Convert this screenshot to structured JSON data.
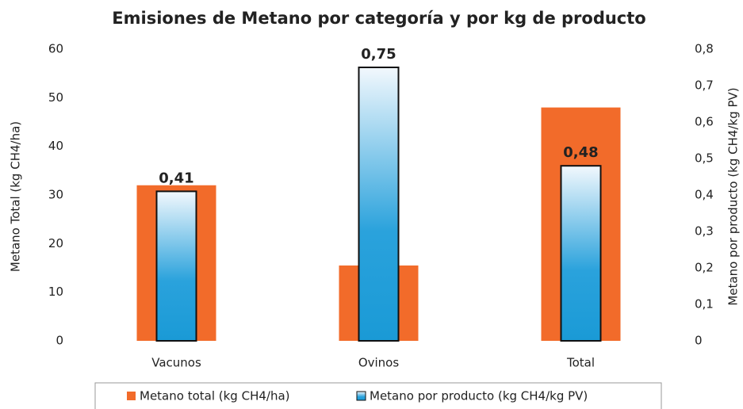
{
  "chart_data": {
    "type": "bar",
    "title": "Emisiones de Metano por categoría y por kg de producto",
    "y_label": "Metano Total (kg CH4/ha)",
    "y2_label": "Metano por producto (kg CH4/kg PV)",
    "categories": [
      "Vacunos",
      "Ovinos",
      "Total"
    ],
    "series": [
      {
        "name": "Metano total (kg CH4/ha)",
        "color": "#f26b2a",
        "values": [
          32,
          15.5,
          48
        ]
      },
      {
        "name": "Metano por producto (kg CH4/kg PV)",
        "color": "#1a9ad6",
        "axis": "y2",
        "values": [
          0.41,
          0.75,
          0.48
        ],
        "value_labels": [
          "0,41",
          "0,75",
          "0,48"
        ]
      }
    ],
    "ylim": [
      0,
      60
    ],
    "yticks": [
      0,
      10,
      20,
      30,
      40,
      50,
      60
    ],
    "y2lim": [
      0,
      0.8
    ],
    "y2ticks": [
      0,
      {
        "value": 0.1,
        "label": "0,1"
      },
      {
        "value": 0.2,
        "label": "0,2"
      },
      {
        "value": 0.3,
        "label": "0,3"
      },
      {
        "value": 0.4,
        "label": "0,4"
      },
      {
        "value": 0.5,
        "label": "0,5"
      },
      {
        "value": 0.6,
        "label": "0,6"
      },
      {
        "value": 0.7,
        "label": "0,7"
      },
      {
        "value": 0.8,
        "label": "0,8"
      }
    ],
    "grid": false,
    "legend": "bottom"
  }
}
